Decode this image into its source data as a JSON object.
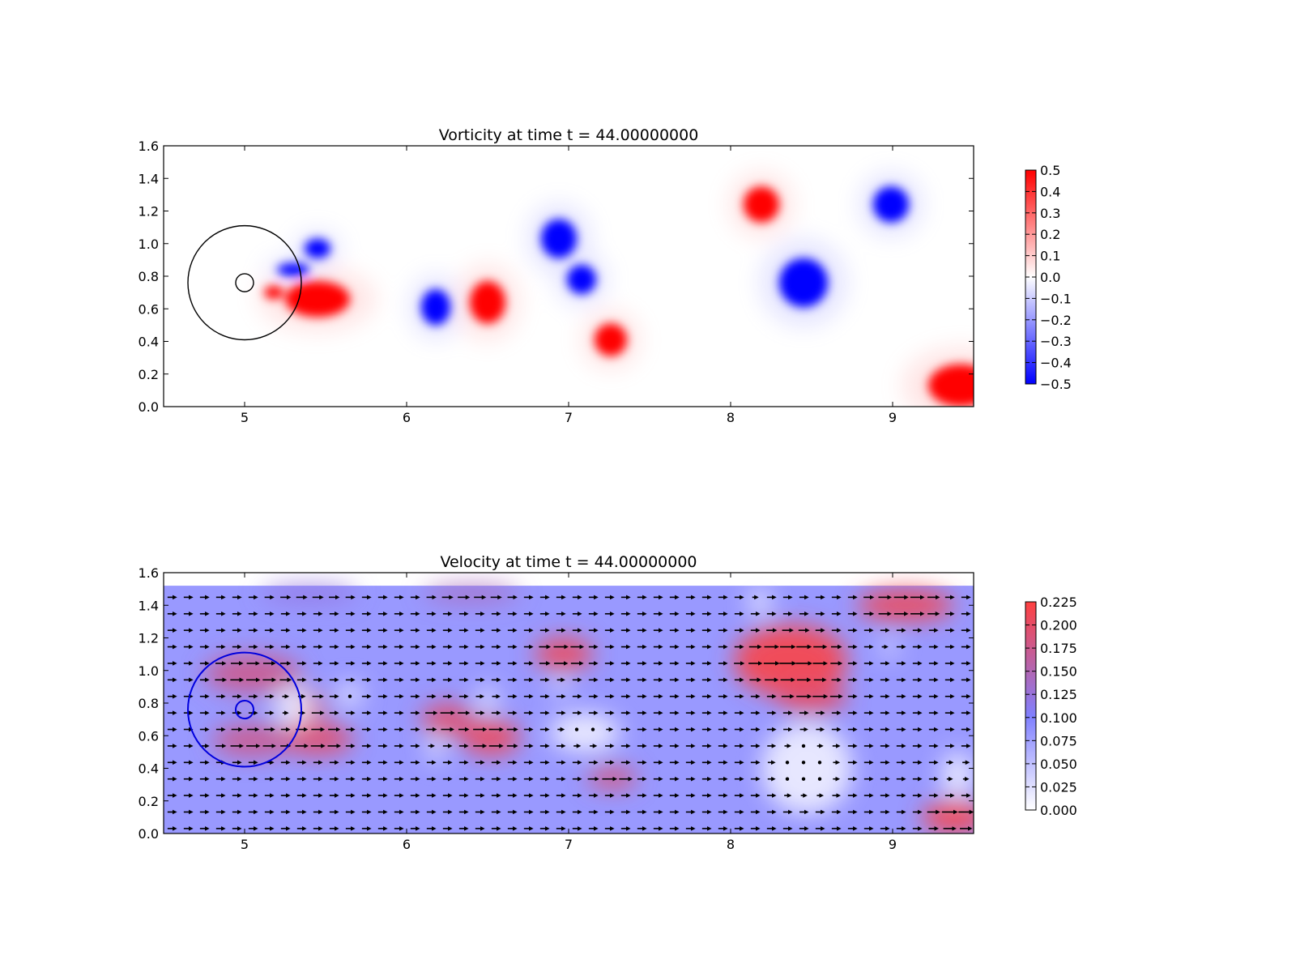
{
  "chart_data": [
    {
      "type": "heatmap",
      "title": "Vorticity at time t =    44.00000000",
      "xlabel": "",
      "ylabel": "",
      "xlim": [
        4.5,
        9.5
      ],
      "ylim": [
        0.0,
        1.6
      ],
      "xticks": [
        "5",
        "6",
        "7",
        "8",
        "9"
      ],
      "yticks": [
        "0.0",
        "0.2",
        "0.4",
        "0.6",
        "0.8",
        "1.0",
        "1.2",
        "1.4",
        "1.6"
      ],
      "colorbar": {
        "min": -0.5,
        "max": 0.5,
        "colors": [
          "#0000ff",
          "#ffffff",
          "#ff0000"
        ],
        "ticks": [
          "−0.5",
          "−0.4",
          "−0.3",
          "−0.2",
          "−0.1",
          "0.0",
          "0.1",
          "0.2",
          "0.3",
          "0.4",
          "0.5"
        ]
      },
      "vortices": [
        {
          "x": 6.18,
          "y": 0.61,
          "rx": 0.09,
          "ry": 0.11,
          "sign": -1
        },
        {
          "x": 6.5,
          "y": 0.64,
          "rx": 0.11,
          "ry": 0.13,
          "sign": 1
        },
        {
          "x": 6.94,
          "y": 1.03,
          "rx": 0.11,
          "ry": 0.12,
          "sign": -1
        },
        {
          "x": 7.08,
          "y": 0.78,
          "rx": 0.09,
          "ry": 0.09,
          "sign": -1
        },
        {
          "x": 7.26,
          "y": 0.41,
          "rx": 0.1,
          "ry": 0.1,
          "sign": 1
        },
        {
          "x": 8.19,
          "y": 1.24,
          "rx": 0.11,
          "ry": 0.11,
          "sign": 1
        },
        {
          "x": 8.99,
          "y": 1.24,
          "rx": 0.11,
          "ry": 0.11,
          "sign": -1
        },
        {
          "x": 8.45,
          "y": 0.76,
          "rx": 0.15,
          "ry": 0.15,
          "sign": -1
        },
        {
          "x": 9.42,
          "y": 0.13,
          "rx": 0.2,
          "ry": 0.13,
          "sign": 1
        },
        {
          "x": 5.45,
          "y": 0.66,
          "rx": 0.2,
          "ry": 0.11,
          "sign": 1
        },
        {
          "x": 5.18,
          "y": 0.7,
          "rx": 0.06,
          "ry": 0.04,
          "sign": 1
        },
        {
          "x": 5.45,
          "y": 0.97,
          "rx": 0.08,
          "ry": 0.06,
          "sign": -1
        },
        {
          "x": 5.3,
          "y": 0.84,
          "rx": 0.1,
          "ry": 0.04,
          "sign": -1
        }
      ],
      "circles": [
        {
          "x": 5.0,
          "y": 0.76,
          "r": 0.35
        },
        {
          "x": 5.0,
          "y": 0.76,
          "r": 0.055
        }
      ],
      "circle_color": "#000000"
    },
    {
      "type": "heatmap",
      "title": "Velocity at time t =    44.00000000",
      "xlabel": "",
      "ylabel": "",
      "xlim": [
        4.5,
        9.5
      ],
      "ylim": [
        0.0,
        1.6
      ],
      "field_ylim": [
        0.0,
        1.52
      ],
      "xticks": [
        "5",
        "6",
        "7",
        "8",
        "9"
      ],
      "yticks": [
        "0.0",
        "0.2",
        "0.4",
        "0.6",
        "0.8",
        "1.0",
        "1.2",
        "1.4",
        "1.6"
      ],
      "colorbar": {
        "min": 0.0,
        "max": 0.225,
        "colors": [
          "#ffffff",
          "#8080ff",
          "#ff4040"
        ],
        "ticks": [
          "0.000",
          "0.025",
          "0.050",
          "0.075",
          "0.100",
          "0.125",
          "0.150",
          "0.175",
          "0.200",
          "0.225"
        ]
      },
      "background_speed": 0.09,
      "fast_regions": [
        {
          "x": 5.05,
          "y": 0.98,
          "rx": 0.3,
          "ry": 0.12,
          "value": 0.18
        },
        {
          "x": 5.05,
          "y": 0.57,
          "rx": 0.25,
          "ry": 0.1,
          "value": 0.18
        },
        {
          "x": 5.45,
          "y": 0.58,
          "rx": 0.22,
          "ry": 0.1,
          "value": 0.2
        },
        {
          "x": 5.4,
          "y": 0.78,
          "rx": 0.1,
          "ry": 0.1,
          "value": 0.19
        },
        {
          "x": 6.25,
          "y": 0.7,
          "rx": 0.16,
          "ry": 0.1,
          "value": 0.2
        },
        {
          "x": 6.52,
          "y": 0.59,
          "rx": 0.18,
          "ry": 0.11,
          "value": 0.21
        },
        {
          "x": 6.97,
          "y": 1.1,
          "rx": 0.18,
          "ry": 0.1,
          "value": 0.21
        },
        {
          "x": 7.27,
          "y": 0.34,
          "rx": 0.15,
          "ry": 0.07,
          "value": 0.19
        },
        {
          "x": 8.37,
          "y": 1.06,
          "rx": 0.35,
          "ry": 0.22,
          "value": 0.22
        },
        {
          "x": 8.5,
          "y": 0.84,
          "rx": 0.22,
          "ry": 0.1,
          "value": 0.2
        },
        {
          "x": 9.08,
          "y": 1.4,
          "rx": 0.3,
          "ry": 0.1,
          "value": 0.21
        },
        {
          "x": 9.38,
          "y": 0.1,
          "rx": 0.2,
          "ry": 0.1,
          "value": 0.22
        },
        {
          "x": 6.4,
          "y": 1.47,
          "rx": 0.3,
          "ry": 0.05,
          "value": 0.15
        },
        {
          "x": 5.4,
          "y": 1.47,
          "rx": 0.3,
          "ry": 0.05,
          "value": 0.13
        }
      ],
      "slow_regions": [
        {
          "x": 5.3,
          "y": 0.78,
          "rx": 0.12,
          "ry": 0.12,
          "value": 0.01
        },
        {
          "x": 5.65,
          "y": 0.85,
          "rx": 0.08,
          "ry": 0.08,
          "value": 0.02
        },
        {
          "x": 6.18,
          "y": 0.52,
          "rx": 0.05,
          "ry": 0.08,
          "value": 0.01
        },
        {
          "x": 6.5,
          "y": 0.82,
          "rx": 0.06,
          "ry": 0.08,
          "value": 0.01
        },
        {
          "x": 6.95,
          "y": 0.9,
          "rx": 0.05,
          "ry": 0.05,
          "value": 0.01
        },
        {
          "x": 7.1,
          "y": 0.62,
          "rx": 0.22,
          "ry": 0.12,
          "value": 0.01
        },
        {
          "x": 8.18,
          "y": 1.42,
          "rx": 0.07,
          "ry": 0.08,
          "value": 0.01
        },
        {
          "x": 8.98,
          "y": 1.14,
          "rx": 0.05,
          "ry": 0.05,
          "value": 0.01
        },
        {
          "x": 8.47,
          "y": 0.4,
          "rx": 0.28,
          "ry": 0.28,
          "value": 0.01
        },
        {
          "x": 9.4,
          "y": 0.36,
          "rx": 0.1,
          "ry": 0.14,
          "value": 0.01
        }
      ],
      "circles": [
        {
          "x": 5.0,
          "y": 0.76,
          "r": 0.35
        },
        {
          "x": 5.0,
          "y": 0.76,
          "r": 0.055
        }
      ],
      "circle_color": "#0000dd"
    }
  ]
}
